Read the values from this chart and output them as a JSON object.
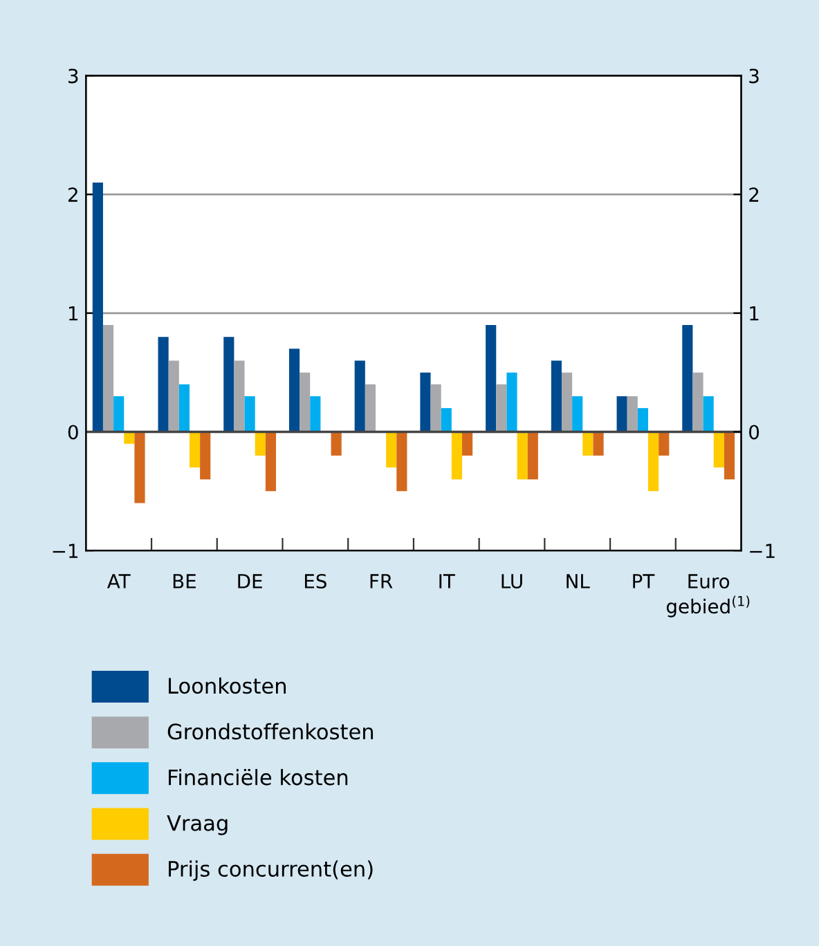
{
  "chart_data": {
    "type": "bar",
    "categories": [
      "AT",
      "BE",
      "DE",
      "ES",
      "FR",
      "IT",
      "LU",
      "NL",
      "PT",
      "Euro\ngebied$^{(1)}$"
    ],
    "series": [
      {
        "name": "Loonkosten",
        "color": "#004b8f",
        "values": [
          2.1,
          0.8,
          0.8,
          0.7,
          0.6,
          0.5,
          0.9,
          0.6,
          0.3,
          0.9
        ]
      },
      {
        "name": "Grondstoffenkosten",
        "color": "#a8a9ad",
        "values": [
          0.9,
          0.6,
          0.6,
          0.5,
          0.4,
          0.4,
          0.4,
          0.5,
          0.3,
          0.5
        ]
      },
      {
        "name": "Financiële kosten",
        "color": "#00aeef",
        "values": [
          0.3,
          0.4,
          0.3,
          0.3,
          0,
          0.2,
          0.5,
          0.3,
          0.2,
          0.3
        ]
      },
      {
        "name": "Vraag",
        "color": "#ffcc00",
        "values": [
          -0.1,
          -0.3,
          -0.2,
          0,
          -0.3,
          -0.4,
          -0.4,
          -0.2,
          -0.5,
          -0.3
        ]
      },
      {
        "name": "Prijs concurrent(en)",
        "color": "#d4691e",
        "values": [
          -0.6,
          -0.4,
          -0.5,
          -0.2,
          -0.5,
          -0.2,
          -0.4,
          -0.2,
          -0.2,
          -0.4
        ]
      }
    ],
    "ylim": [
      -1,
      3
    ],
    "yticks": [
      {
        "value": -1,
        "label": "−1"
      },
      0,
      1,
      2,
      3
    ],
    "y2lim": [
      -1,
      3
    ],
    "y2ticks": [
      {
        "value": -1,
        "label": "−1"
      },
      0,
      1,
      2,
      3
    ],
    "grid": "y",
    "legend": "bottom"
  }
}
